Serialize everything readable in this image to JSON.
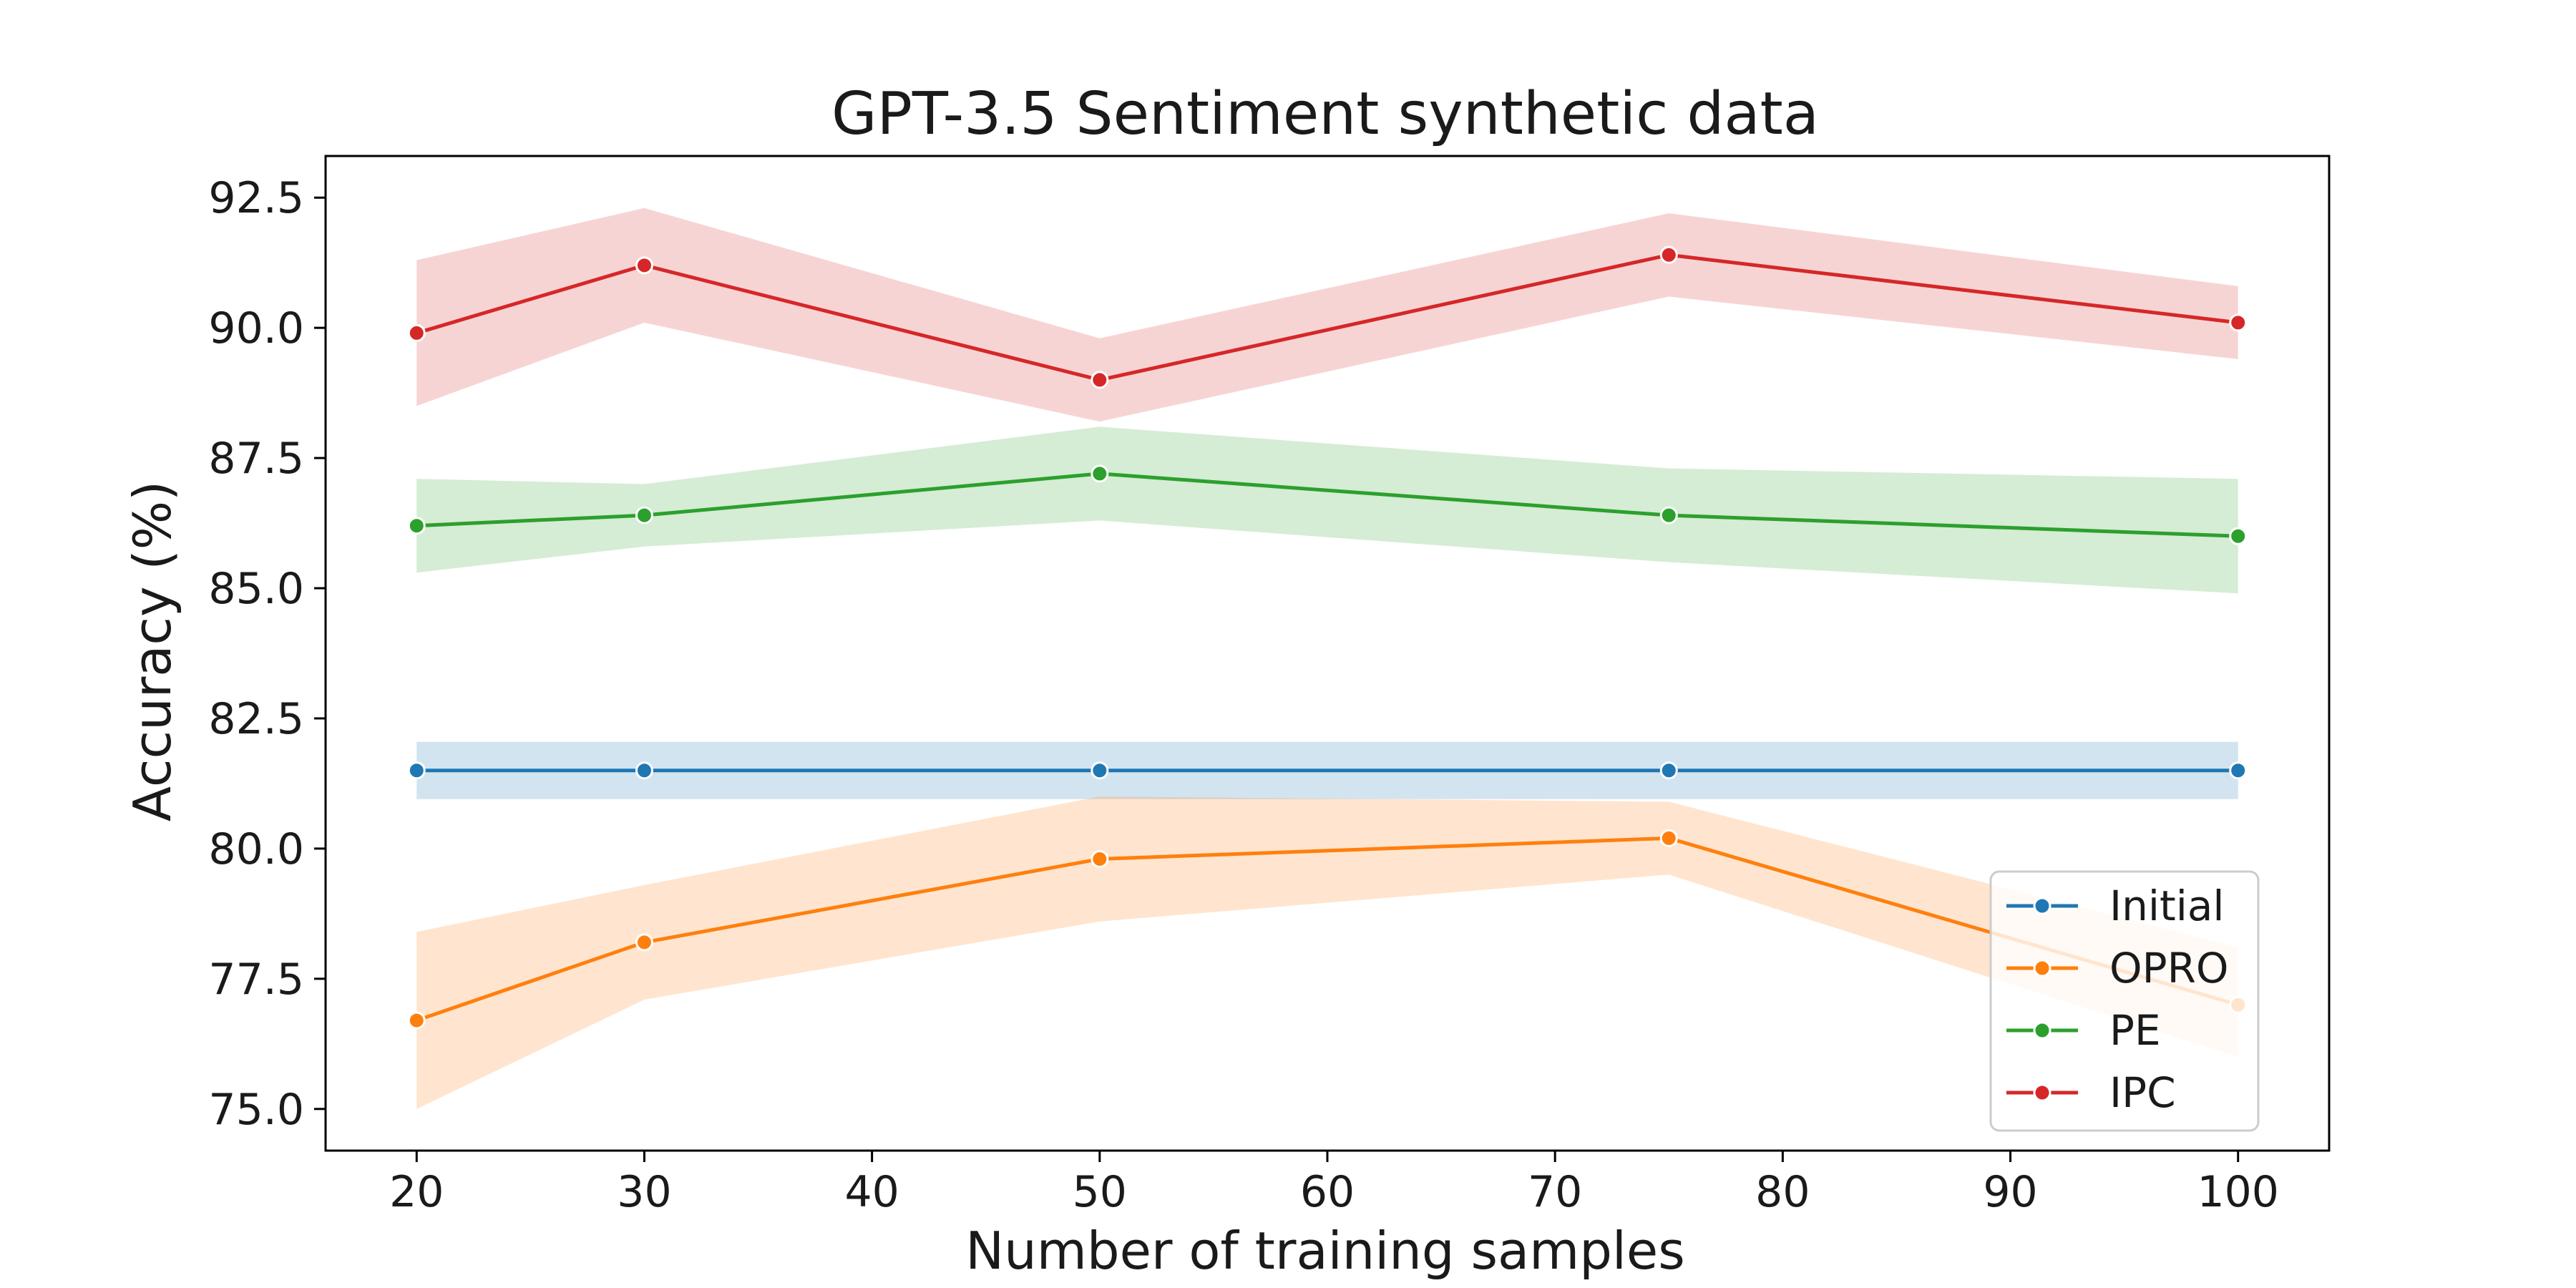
{
  "chart_data": {
    "type": "line",
    "title": "GPT-3.5 Sentiment synthetic data",
    "xlabel": "Number of training samples",
    "ylabel": "Accuracy (%)",
    "xlim": [
      16,
      104
    ],
    "ylim": [
      74.2,
      93.3
    ],
    "xticks": [
      20,
      30,
      40,
      50,
      60,
      70,
      80,
      90,
      100
    ],
    "xtick_labels": [
      "20",
      "30",
      "40",
      "50",
      "60",
      "70",
      "80",
      "90",
      "100"
    ],
    "yticks": [
      75.0,
      77.5,
      80.0,
      82.5,
      85.0,
      87.5,
      90.0,
      92.5
    ],
    "ytick_labels": [
      "75.0",
      "77.5",
      "80.0",
      "82.5",
      "85.0",
      "87.5",
      "90.0",
      "92.5"
    ],
    "grid": false,
    "legend_position": "bottom-right",
    "x": [
      20,
      30,
      50,
      75,
      100
    ],
    "series": [
      {
        "name": "Initial",
        "color": "#1f77b4",
        "band_color": "#1f77b4",
        "values": [
          81.5,
          81.5,
          81.5,
          81.5,
          81.5
        ],
        "lower": [
          80.95,
          80.95,
          80.95,
          80.95,
          80.95
        ],
        "upper": [
          82.05,
          82.05,
          82.05,
          82.05,
          82.05
        ]
      },
      {
        "name": "OPRO",
        "color": "#ff7f0e",
        "band_color": "#ff7f0e",
        "values": [
          76.7,
          78.2,
          79.8,
          80.2,
          77.0
        ],
        "lower": [
          75.0,
          77.1,
          78.6,
          79.5,
          76.0
        ],
        "upper": [
          78.4,
          79.3,
          81.0,
          80.9,
          78.1
        ]
      },
      {
        "name": "PE",
        "color": "#2ca02c",
        "band_color": "#2ca02c",
        "values": [
          86.2,
          86.4,
          87.2,
          86.4,
          86.0
        ],
        "lower": [
          85.3,
          85.8,
          86.3,
          85.5,
          84.9
        ],
        "upper": [
          87.1,
          87.0,
          88.1,
          87.3,
          87.1
        ]
      },
      {
        "name": "IPC",
        "color": "#d62728",
        "band_color": "#d62728",
        "values": [
          89.9,
          91.2,
          89.0,
          91.4,
          90.1
        ],
        "lower": [
          88.5,
          90.1,
          88.2,
          90.6,
          89.4
        ],
        "upper": [
          91.3,
          92.3,
          89.8,
          92.2,
          90.8
        ]
      }
    ]
  }
}
